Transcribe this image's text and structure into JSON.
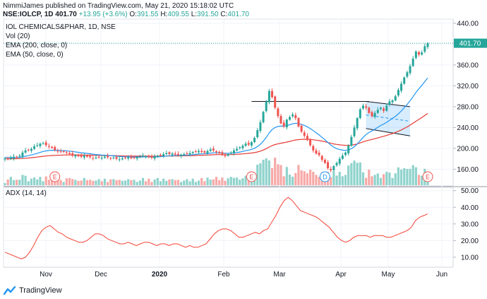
{
  "header": {
    "line1": "NimmiJames published on TradingView.com, May 21, 2020 15:18:02 UTC",
    "symbol": "NSE:IOLCP, 1D",
    "last": "401.70",
    "change": "+13.95 (+3.6%)",
    "o_label": "O:",
    "o_val": "391.55",
    "h_label": "H:",
    "h_val": "409.55",
    "l_label": "L:",
    "l_val": "391.50",
    "c_label": "C:",
    "c_val": "401.70"
  },
  "legend": {
    "title": "IOL CHEMICALS&PHAR, 1D, NSE",
    "vol": "Vol (20)",
    "ema200": "EMA (200, close, 0)",
    "ema50": "EMA (50, close, 0)",
    "adx": "ADX (14, 14)"
  },
  "price_tag": "401.70",
  "footer": {
    "brand": "TradingView"
  },
  "colors": {
    "up": "#26a69a",
    "down": "#ef5350",
    "ema50": "#2196f3",
    "ema200": "#e53935",
    "adx": "#f44336",
    "vol_up": "#8fd3cc",
    "vol_down": "#f7a9a7",
    "channel": "#2196f3"
  },
  "chart_data": [
    {
      "type": "candlestick",
      "title": "IOL CHEMICALS&PHAR, 1D, NSE",
      "x_ticks": [
        "Nov",
        "Dec",
        "2020",
        "Feb",
        "Mar",
        "Apr",
        "May",
        "Jun"
      ],
      "y_ticks": [
        160,
        200,
        240,
        280,
        320,
        360,
        400,
        440
      ],
      "ylim": [
        128,
        448
      ],
      "last_price": 401.7,
      "close": [
        181,
        179,
        182,
        184,
        183,
        186,
        192,
        196,
        197,
        199,
        204,
        206,
        209,
        210,
        206,
        203,
        201,
        197,
        194,
        193,
        194,
        191,
        189,
        186,
        187,
        185,
        184,
        186,
        184,
        183,
        181,
        182,
        183,
        182,
        184,
        183,
        181,
        182,
        180,
        179,
        181,
        182,
        183,
        181,
        182,
        183,
        184,
        186,
        185,
        183,
        182,
        184,
        186,
        187,
        189,
        191,
        189,
        190,
        188,
        187,
        188,
        189,
        190,
        191,
        193,
        194,
        195,
        193,
        192,
        195,
        198,
        196,
        193,
        191,
        188,
        186,
        189,
        192,
        196,
        199,
        202,
        205,
        209,
        207,
        212,
        220,
        235,
        250,
        270,
        290,
        310,
        298,
        278,
        262,
        248,
        242,
        255,
        260,
        265,
        258,
        242,
        232,
        224,
        216,
        206,
        196,
        190,
        187,
        178,
        172,
        162,
        158,
        166,
        172,
        180,
        186,
        192,
        205,
        222,
        240,
        258,
        275,
        282,
        278,
        268,
        262,
        268,
        274,
        278,
        272,
        282,
        290,
        292,
        300,
        312,
        324,
        336,
        346,
        358,
        372,
        386,
        380,
        384,
        396,
        401.7
      ],
      "markers": [
        {
          "type": "earnings",
          "label": "E",
          "near_close_index": 17
        },
        {
          "type": "earnings",
          "label": "E",
          "near_close_index": 84
        },
        {
          "type": "dividend",
          "label": "D",
          "near_close_index": 109
        },
        {
          "type": "earnings",
          "label": "E",
          "near_close_index": 150
        }
      ],
      "annotations": [
        {
          "type": "horizontal_line",
          "price": 290
        },
        {
          "type": "descending_channel",
          "upper": [
            290,
            280
          ],
          "lower": [
            238,
            224
          ]
        }
      ]
    },
    {
      "type": "line",
      "title": "ADX (14, 14)",
      "y_ticks": [
        10.0,
        20.0,
        30.0,
        40.0,
        50.0
      ],
      "ylim": [
        4,
        52
      ],
      "series": [
        {
          "values": [
            13,
            12,
            11,
            10,
            9,
            10,
            13,
            17,
            22,
            26,
            28,
            29,
            27,
            25,
            24,
            22,
            21,
            20,
            19,
            19,
            20,
            22,
            24,
            24,
            23,
            21,
            20,
            19,
            18,
            18,
            19,
            18,
            17,
            18,
            19,
            19,
            18,
            17,
            18,
            18,
            17,
            18,
            18,
            17,
            16,
            17,
            16,
            16,
            17,
            18,
            21,
            24,
            26,
            27,
            27,
            26,
            24,
            22,
            22,
            23,
            24,
            25,
            24,
            26,
            27,
            31,
            35,
            40,
            44,
            46,
            44,
            41,
            38,
            37,
            36,
            35,
            34,
            32,
            30,
            28,
            25,
            22,
            20,
            19,
            20,
            22,
            23,
            23,
            23,
            22,
            23,
            23,
            23,
            22,
            22,
            23,
            24,
            25,
            26,
            28,
            32,
            34,
            35,
            36
          ]
        }
      ]
    }
  ]
}
